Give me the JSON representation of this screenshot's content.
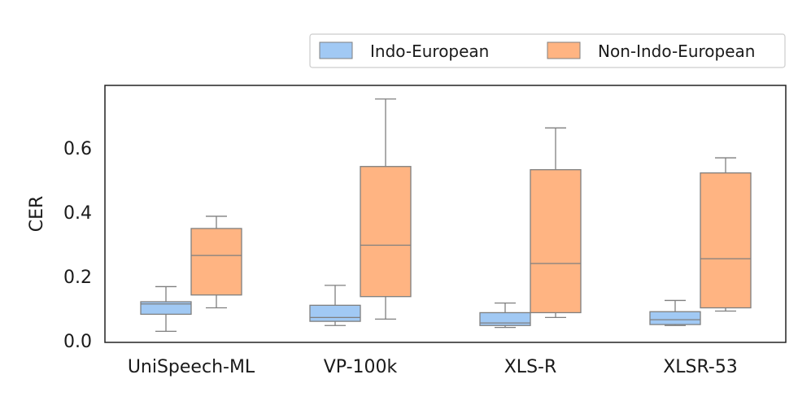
{
  "chart_data": {
    "type": "box",
    "ylabel": "CER",
    "xlabel": "",
    "ylim": [
      0,
      0.76
    ],
    "yticks": [
      "0.0",
      "0.2",
      "0.4",
      "0.6"
    ],
    "yticks_values": [
      0,
      0.2,
      0.4,
      0.6
    ],
    "grid": false,
    "legend_position": "top-right",
    "categories": [
      "UniSpeech-ML",
      "VP-100k",
      "XLS-R",
      "XLSR-53"
    ],
    "series": [
      {
        "name": "Indo-European",
        "color": "#a1c9f4",
        "boxes": [
          {
            "whisker_low": 0.032,
            "q1": 0.085,
            "median": 0.117,
            "q3": 0.124,
            "whisker_high": 0.171
          },
          {
            "whisker_low": 0.05,
            "q1": 0.063,
            "median": 0.075,
            "q3": 0.113,
            "whisker_high": 0.175
          },
          {
            "whisker_low": 0.044,
            "q1": 0.05,
            "median": 0.058,
            "q3": 0.09,
            "whisker_high": 0.12
          },
          {
            "whisker_low": 0.05,
            "q1": 0.053,
            "median": 0.068,
            "q3": 0.093,
            "whisker_high": 0.128
          }
        ]
      },
      {
        "name": "Non-Indo-European",
        "color": "#ffb482",
        "boxes": [
          {
            "whisker_low": 0.105,
            "q1": 0.145,
            "median": 0.268,
            "q3": 0.352,
            "whisker_high": 0.39
          },
          {
            "whisker_low": 0.07,
            "q1": 0.14,
            "median": 0.3,
            "q3": 0.545,
            "whisker_high": 0.755
          },
          {
            "whisker_low": 0.075,
            "q1": 0.09,
            "median": 0.243,
            "q3": 0.535,
            "whisker_high": 0.665
          },
          {
            "whisker_low": 0.095,
            "q1": 0.105,
            "median": 0.258,
            "q3": 0.525,
            "whisker_high": 0.572
          }
        ]
      }
    ]
  }
}
